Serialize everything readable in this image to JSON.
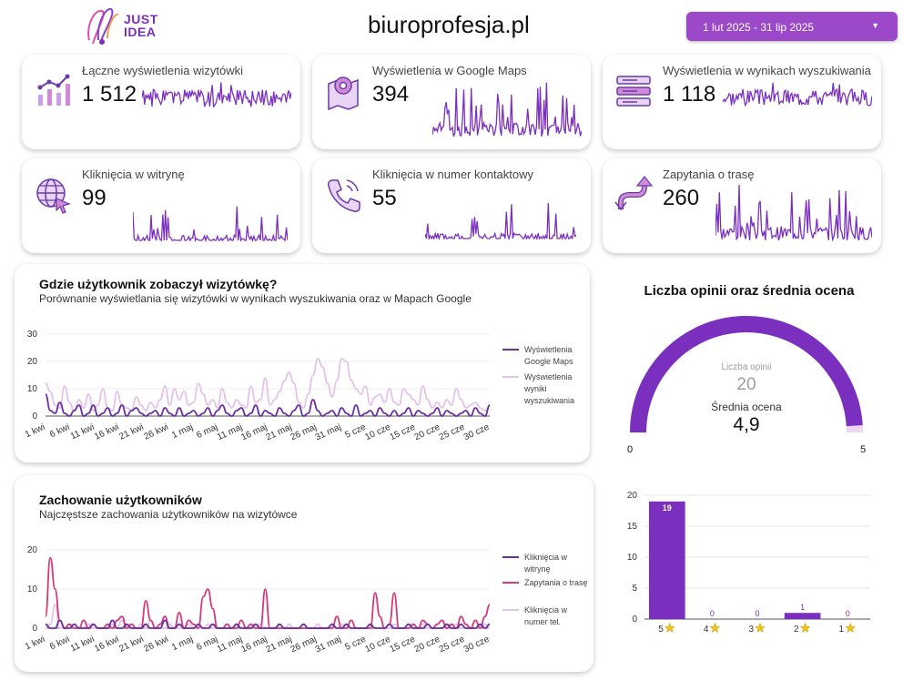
{
  "header": {
    "logo_text_1": "JUST",
    "logo_text_2": "IDEA",
    "site_title": "biuroprofesja.pl",
    "date_range": "1 lut 2025 - 31 lip 2025"
  },
  "kpis": [
    {
      "label": "Łączne wyświetlenia wizytówki",
      "value": "1 512",
      "icon": "analytics-chart-icon"
    },
    {
      "label": "Wyświetlenia w Google Maps",
      "value": "394",
      "icon": "map-pin-icon"
    },
    {
      "label": "Wyświetlenia w wynikach wyszukiwania",
      "value": "1 118",
      "icon": "search-results-list-icon"
    },
    {
      "label": "Kliknięcia w witrynę",
      "value": "99",
      "icon": "globe-cursor-icon"
    },
    {
      "label": "Kliknięcia w numer kontaktowy",
      "value": "55",
      "icon": "phone-call-icon"
    },
    {
      "label": "Zapytania o trasę",
      "value": "260",
      "icon": "directions-arrow-icon"
    }
  ],
  "views_chart": {
    "title": "Gdzie użytkownik zobaczył wizytówkę?",
    "subtitle": "Porównanie wyświetlania się wizytówki w wynikach wyszukiwania oraz w Mapach Google",
    "legend": [
      {
        "label": "Wyświetlenia Google Maps",
        "color": "#6a2fa0"
      },
      {
        "label": "Wyświetlenia wyniki wyszukiwania",
        "color": "#e4c2ec"
      }
    ]
  },
  "behavior_chart": {
    "title": "Zachowanie użytkowników",
    "subtitle": "Najczęstsze zachowania użytkowników na wizytówce",
    "legend": [
      {
        "label": "Kliknięcia w witrynę",
        "color": "#6a2fa0"
      },
      {
        "label": "Zapytania o trasę",
        "color": "#d6397a"
      },
      {
        "label": "Kliknięcia w numer tel.",
        "color": "#e4c2ec"
      }
    ]
  },
  "gauge": {
    "title": "Liczba opinii oraz średnia ocena",
    "reviews_label": "Liczba opinii",
    "reviews_value": "20",
    "rating_label": "Średnia ocena",
    "rating_value": "4,9",
    "min_label": "0",
    "max_label": "5",
    "rating": 4.9,
    "max": 5,
    "color": "#7b2fbf"
  },
  "chart_data": [
    {
      "type": "line",
      "x_ticks": [
        "1 kwi",
        "6 kwi",
        "11 kwi",
        "16 kwi",
        "21 kwi",
        "26 kwi",
        "1 maj",
        "6 maj",
        "11 maj",
        "16 maj",
        "21 maj",
        "26 maj",
        "31 maj",
        "5 cze",
        "10 cze",
        "15 cze",
        "20 cze",
        "25 cze",
        "30 cze"
      ],
      "y_ticks": [
        "0",
        "10",
        "20",
        "30"
      ],
      "ylim": [
        0,
        30
      ],
      "series": [
        {
          "name": "Wyświetlenia Google Maps",
          "color": "#6a2fa0",
          "values": [
            8,
            2,
            1,
            5,
            1,
            0,
            2,
            4,
            0,
            1,
            4,
            0,
            1,
            3,
            0,
            1,
            4,
            0,
            2,
            3,
            1,
            0,
            1,
            2,
            0,
            3,
            1,
            0,
            3,
            0,
            1,
            2,
            0,
            1,
            3,
            0,
            2,
            4,
            1,
            0,
            2,
            3,
            0,
            1,
            4,
            0,
            2,
            1,
            0,
            3,
            1,
            0,
            2,
            4,
            0,
            1,
            6,
            2,
            0,
            1,
            2,
            0,
            3,
            1,
            0,
            4,
            0,
            1,
            2,
            0,
            3,
            1,
            0,
            2,
            0,
            1,
            3,
            0,
            2,
            1,
            0,
            1,
            3,
            0,
            2,
            1,
            0,
            1,
            2,
            0,
            3,
            1,
            0,
            4
          ]
        },
        {
          "name": "Wyświetlenia wyniki wyszukiwania",
          "color": "#e4c2ec",
          "values": [
            12,
            9,
            4,
            3,
            11,
            5,
            2,
            6,
            3,
            8,
            2,
            4,
            10,
            3,
            2,
            9,
            4,
            3,
            2,
            7,
            4,
            2,
            5,
            3,
            6,
            11,
            4,
            10,
            6,
            9,
            4,
            5,
            12,
            8,
            4,
            6,
            3,
            10,
            5,
            3,
            6,
            4,
            3,
            11,
            5,
            6,
            14,
            4,
            6,
            9,
            13,
            16,
            12,
            5,
            3,
            8,
            15,
            21,
            18,
            12,
            7,
            13,
            21,
            20,
            13,
            10,
            8,
            11,
            4,
            7,
            8,
            5,
            10,
            5,
            4,
            10,
            8,
            6,
            4,
            11,
            6,
            3,
            5,
            3,
            6,
            4,
            10,
            6,
            3,
            4,
            5,
            3,
            2,
            3
          ]
        }
      ]
    },
    {
      "type": "line",
      "x_ticks": [
        "1 kwi",
        "6 kwi",
        "11 kwi",
        "16 kwi",
        "21 kwi",
        "26 kwi",
        "1 maj",
        "6 maj",
        "11 maj",
        "16 maj",
        "21 maj",
        "26 maj",
        "31 maj",
        "5 cze",
        "10 cze",
        "15 cze",
        "20 cze",
        "25 cze",
        "30 cze"
      ],
      "y_ticks": [
        "0",
        "10",
        "20"
      ],
      "ylim": [
        0,
        20
      ],
      "series": [
        {
          "name": "Kliknięcia w witrynę",
          "color": "#6a2fa0",
          "values": [
            1,
            0,
            0,
            2,
            0,
            0,
            1,
            0,
            0,
            0,
            1,
            0,
            0,
            0,
            2,
            0,
            0,
            1,
            0,
            0,
            0,
            1,
            0,
            0,
            0,
            2,
            0,
            0,
            1,
            0,
            0,
            0,
            1,
            0,
            0,
            1,
            0,
            0,
            0,
            0,
            1,
            0,
            0,
            0,
            1,
            0,
            0,
            0,
            0,
            1,
            0,
            0,
            0,
            0,
            1,
            0,
            0,
            0,
            0,
            0,
            1,
            0,
            0,
            1,
            0,
            0,
            0,
            0,
            1,
            0,
            0,
            0,
            1,
            0,
            0,
            0,
            1,
            0,
            0,
            0,
            1,
            0,
            0,
            0,
            1,
            0,
            0,
            1,
            0,
            0,
            0,
            1,
            0,
            1
          ]
        },
        {
          "name": "Zapytania o trasę",
          "color": "#d6397a",
          "values": [
            3,
            18,
            10,
            2,
            0,
            1,
            0,
            0,
            2,
            0,
            1,
            0,
            0,
            1,
            0,
            2,
            3,
            0,
            1,
            0,
            0,
            7,
            2,
            0,
            1,
            3,
            0,
            0,
            4,
            0,
            2,
            1,
            0,
            8,
            10,
            5,
            0,
            0,
            1,
            0,
            0,
            2,
            0,
            1,
            0,
            0,
            10,
            0,
            0,
            0,
            0,
            0,
            0,
            0,
            0,
            0,
            0,
            0,
            0,
            0,
            0,
            3,
            0,
            0,
            2,
            0,
            0,
            0,
            0,
            9,
            3,
            0,
            1,
            9,
            0,
            0,
            0,
            1,
            0,
            2,
            1,
            0,
            1,
            2,
            0,
            1,
            0,
            3,
            1,
            0,
            2,
            0,
            3,
            6
          ]
        },
        {
          "name": "Kliknięcia w numer tel.",
          "color": "#e4c2ec",
          "values": [
            0,
            1,
            6,
            0,
            0,
            1,
            0,
            0,
            0,
            1,
            0,
            0,
            0,
            0,
            1,
            0,
            2,
            0,
            0,
            0,
            1,
            0,
            2,
            0,
            0,
            0,
            1,
            0,
            0,
            0,
            1,
            0,
            0,
            0,
            1,
            0,
            0,
            0,
            0,
            0,
            1,
            0,
            0,
            0,
            0,
            1,
            0,
            0,
            0,
            0,
            0,
            1,
            0,
            0,
            0,
            0,
            0,
            1,
            0,
            0,
            0,
            0,
            1,
            0,
            0,
            0,
            0,
            0,
            1,
            0,
            0,
            0,
            0,
            1,
            0,
            0,
            0,
            0,
            0,
            1,
            0,
            0,
            0,
            0,
            0,
            0,
            1,
            0,
            0,
            0,
            0,
            0,
            1,
            0
          ]
        }
      ]
    },
    {
      "type": "bar",
      "categories": [
        "5",
        "4",
        "3",
        "2",
        "1"
      ],
      "values": [
        19,
        0,
        0,
        1,
        0
      ],
      "value_labels": [
        "19",
        "0",
        "0",
        "1",
        "0"
      ],
      "y_ticks": [
        "0",
        "5",
        "10",
        "15",
        "20"
      ],
      "ylim": [
        0,
        20
      ],
      "color": "#7b2fbf"
    }
  ]
}
